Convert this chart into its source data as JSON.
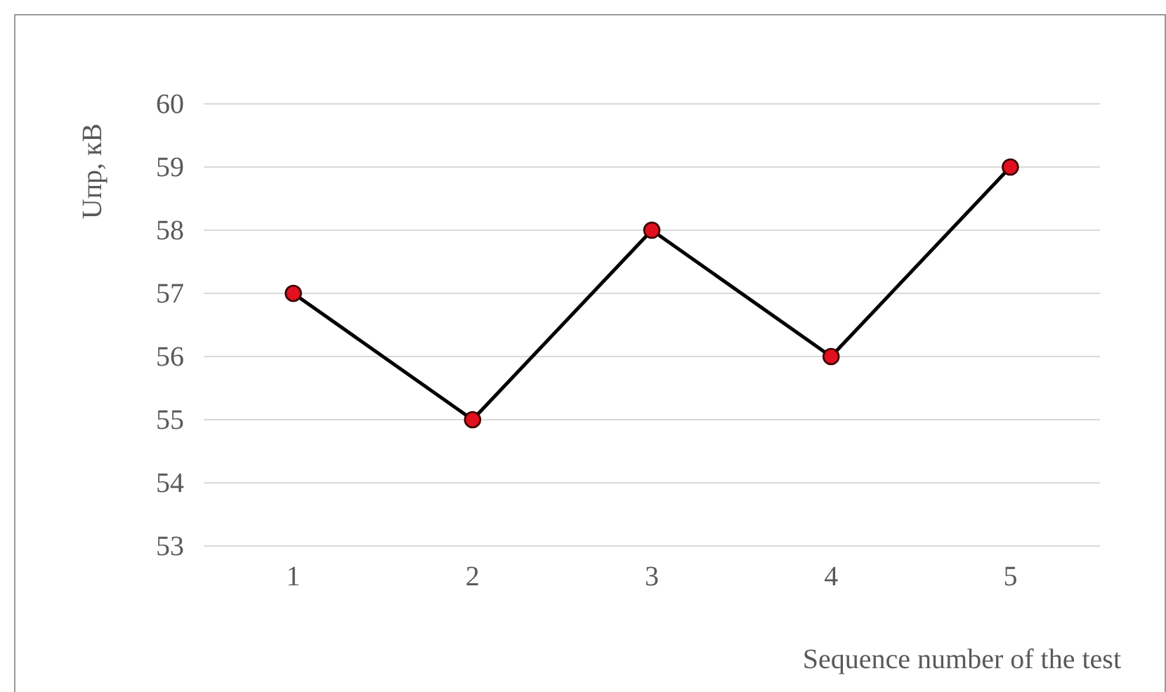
{
  "chart_data": {
    "type": "line",
    "ylabel": "Uпр, кВ",
    "xlabel": "Sequence number of the test",
    "categories": [
      "1",
      "2",
      "3",
      "4",
      "5"
    ],
    "series": [
      {
        "color": "#000000",
        "values": [
          57,
          55,
          58,
          56,
          59
        ]
      }
    ],
    "ylim": [
      53,
      60
    ],
    "yticks": [
      53,
      54,
      55,
      56,
      57,
      58,
      59,
      60
    ],
    "grid": "y",
    "marker": "circle",
    "line_style": "solid"
  }
}
